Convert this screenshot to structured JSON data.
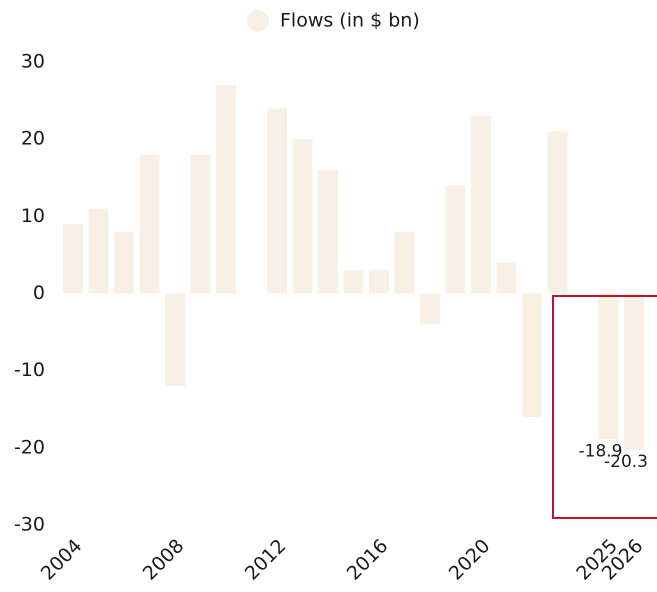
{
  "chart_data": {
    "type": "bar",
    "categories": [
      "2004",
      null,
      null,
      null,
      "2008",
      null,
      null,
      null,
      "2012",
      null,
      null,
      null,
      "2016",
      null,
      null,
      null,
      "2020",
      null,
      null,
      null,
      null,
      "2025",
      "2026"
    ],
    "series": [
      {
        "name": "Flows (in $ bn)",
        "color": "#f8efe5",
        "values": [
          9,
          11,
          8,
          18,
          -12,
          18,
          27,
          null,
          24,
          20,
          16,
          3,
          3,
          8,
          -4,
          14,
          23,
          4,
          -16,
          21,
          null,
          -18.9,
          -20.3
        ],
        "value_labels": [
          null,
          null,
          null,
          null,
          null,
          null,
          null,
          null,
          null,
          null,
          null,
          null,
          null,
          null,
          null,
          null,
          null,
          null,
          null,
          null,
          null,
          "-18.9",
          "-20.3"
        ]
      }
    ],
    "ylim": [
      -30,
      30
    ],
    "yticks": [
      -30,
      -20,
      -10,
      0,
      10,
      20,
      30
    ],
    "grid": false,
    "legend": "top"
  }
}
